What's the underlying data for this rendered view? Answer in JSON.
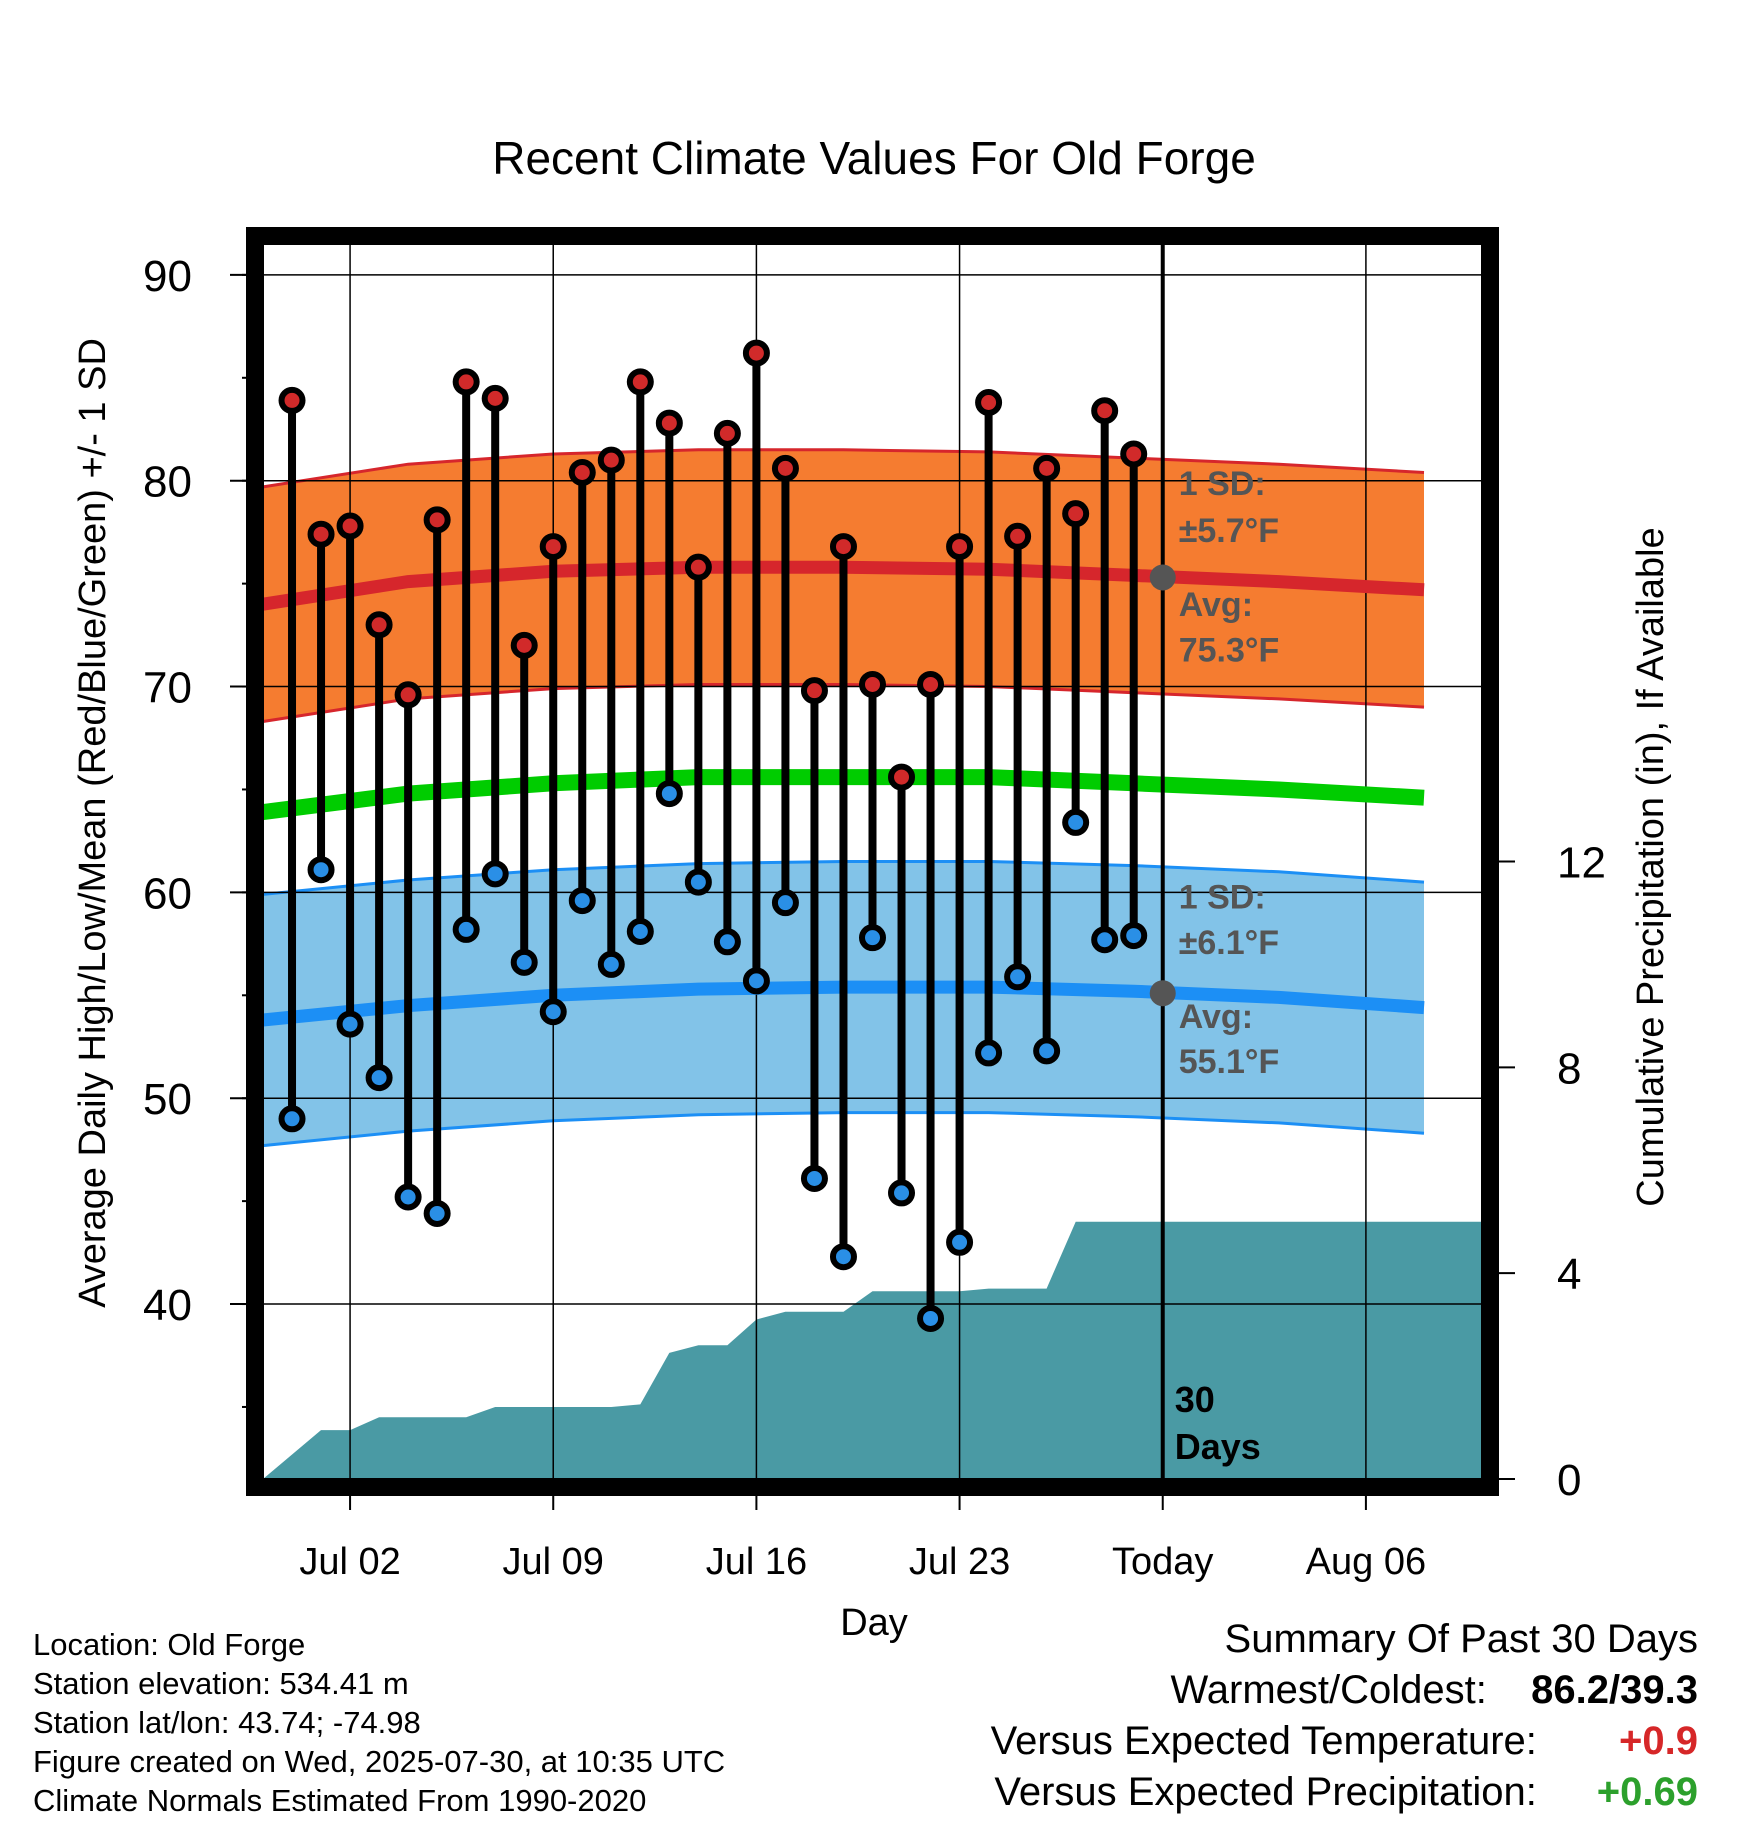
{
  "chart_data": {
    "type": "line",
    "title": "Recent Climate Values For Old Forge",
    "xlabel": "Day",
    "ylabel": "Average Daily High/Low/Mean (Red/Blue/Green) +/- 1 SD",
    "y2label": "Cumulative Precipitation (in), If Available",
    "ylim": [
      31.5,
      91.5
    ],
    "y2lim": [
      0,
      24
    ],
    "yticks": [
      "40",
      "50",
      "60",
      "70",
      "80",
      "90"
    ],
    "y2ticks": [
      "0",
      "4",
      "8",
      "12"
    ],
    "xlim": [
      "2025-06-29",
      "2025-08-10"
    ],
    "xticks": [
      {
        "date": "2025-07-02",
        "label": "Jul 02"
      },
      {
        "date": "2025-07-09",
        "label": "Jul 09"
      },
      {
        "date": "2025-07-16",
        "label": "Jul 16"
      },
      {
        "date": "2025-07-23",
        "label": "Jul 23"
      },
      {
        "date": "2025-07-30",
        "label": "Today"
      },
      {
        "date": "2025-08-06",
        "label": "Aug 06"
      }
    ],
    "grid": true,
    "dates": [
      "2025-07-01",
      "2025-07-02",
      "2025-07-03",
      "2025-07-04",
      "2025-07-05",
      "2025-07-06",
      "2025-07-07",
      "2025-07-08",
      "2025-07-09",
      "2025-07-10",
      "2025-07-11",
      "2025-07-12",
      "2025-07-13",
      "2025-07-14",
      "2025-07-15",
      "2025-07-16",
      "2025-07-17",
      "2025-07-18",
      "2025-07-19",
      "2025-07-20",
      "2025-07-21",
      "2025-07-22",
      "2025-07-23",
      "2025-07-24",
      "2025-07-25",
      "2025-07-26",
      "2025-07-27",
      "2025-07-28",
      "2025-07-29"
    ],
    "highs": [
      83.9,
      77.4,
      77.8,
      73.0,
      69.6,
      78.1,
      84.8,
      84.0,
      72.0,
      76.8,
      80.4,
      81.0,
      84.8,
      82.8,
      75.8,
      82.3,
      86.2,
      80.6,
      69.8,
      76.8,
      70.1,
      65.6,
      70.1,
      76.8,
      83.8,
      77.3,
      80.6,
      78.4,
      83.4,
      81.3
    ],
    "lows": [
      49.0,
      61.1,
      53.6,
      51.0,
      45.2,
      44.4,
      58.2,
      60.9,
      56.6,
      54.2,
      59.6,
      56.5,
      58.1,
      64.8,
      60.5,
      57.6,
      55.7,
      59.5,
      46.1,
      42.3,
      57.8,
      45.4,
      39.3,
      43.0,
      52.2,
      55.9,
      52.3,
      63.4,
      57.7,
      57.9
    ],
    "high_low_dates": [
      "2025-06-30",
      "2025-07-01",
      "2025-07-02",
      "2025-07-03",
      "2025-07-04",
      "2025-07-05",
      "2025-07-06",
      "2025-07-07",
      "2025-07-08",
      "2025-07-09",
      "2025-07-10",
      "2025-07-11",
      "2025-07-12",
      "2025-07-13",
      "2025-07-14",
      "2025-07-15",
      "2025-07-16",
      "2025-07-17",
      "2025-07-18",
      "2025-07-19",
      "2025-07-20",
      "2025-07-21",
      "2025-07-22",
      "2025-07-23",
      "2025-07-24",
      "2025-07-25",
      "2025-07-26",
      "2025-07-27",
      "2025-07-28",
      "2025-07-29"
    ],
    "normals": {
      "dates": [
        "2025-06-29",
        "2025-07-04",
        "2025-07-09",
        "2025-07-14",
        "2025-07-19",
        "2025-07-24",
        "2025-07-29",
        "2025-08-03",
        "2025-08-08"
      ],
      "avg_high": [
        74.0,
        75.1,
        75.6,
        75.8,
        75.8,
        75.7,
        75.4,
        75.1,
        74.7
      ],
      "avg_low": [
        53.8,
        54.5,
        55.0,
        55.3,
        55.4,
        55.4,
        55.2,
        54.9,
        54.4
      ],
      "avg_mean": [
        63.9,
        64.8,
        65.3,
        65.6,
        65.6,
        65.6,
        65.3,
        65.0,
        64.6
      ],
      "high_sd": 5.7,
      "low_sd": 6.1
    },
    "precipitation": {
      "dates": [
        "2025-06-29",
        "2025-07-01",
        "2025-07-02",
        "2025-07-03",
        "2025-07-04",
        "2025-07-05",
        "2025-07-06",
        "2025-07-07",
        "2025-07-08",
        "2025-07-09",
        "2025-07-10",
        "2025-07-11",
        "2025-07-12",
        "2025-07-13",
        "2025-07-14",
        "2025-07-15",
        "2025-07-16",
        "2025-07-17",
        "2025-07-18",
        "2025-07-19",
        "2025-07-20",
        "2025-07-21",
        "2025-07-22",
        "2025-07-23",
        "2025-07-24",
        "2025-07-25",
        "2025-07-26",
        "2025-07-27",
        "2025-07-28",
        "2025-07-29",
        "2025-08-10"
      ],
      "values": [
        0.0,
        0.95,
        0.95,
        1.2,
        1.2,
        1.2,
        1.2,
        1.4,
        1.4,
        1.4,
        1.4,
        1.4,
        1.45,
        2.45,
        2.6,
        2.6,
        3.1,
        3.25,
        3.25,
        3.25,
        3.65,
        3.65,
        3.65,
        3.65,
        3.7,
        3.7,
        3.7,
        5.0,
        5.0,
        5.0,
        5.0
      ]
    },
    "annotations": {
      "high_sd": [
        "1 SD:",
        "±5.7°F"
      ],
      "high_avg": [
        "Avg:",
        "75.3°F"
      ],
      "low_sd": [
        "1 SD:",
        "±6.1°F"
      ],
      "low_avg": [
        "Avg:",
        "55.1°F"
      ],
      "window": [
        "30",
        "Days"
      ]
    },
    "colors": {
      "high_band": "#f57c30",
      "high_line": "#d6262c",
      "low_band": "#82c3e8",
      "low_line": "#1c8ff5",
      "mean_line": "#00cc00",
      "precip": "#4a9aa4",
      "annotation": "#555555",
      "high_marker": "#d12a2a",
      "low_marker": "#2a8fe6"
    }
  },
  "info": {
    "location": "Location: Old Forge",
    "elevation": "Station elevation: 534.41 m",
    "latlon": "Station lat/lon: 43.74; -74.98",
    "created": "Figure created on Wed, 2025-07-30, at 10:35 UTC",
    "normals": "Climate Normals Estimated From 1990-2020"
  },
  "summary": {
    "title": "Summary Of Past 30 Days",
    "warm_cold_label": "Warmest/Coldest:",
    "warm_cold_value": "86.2/39.3",
    "temp_label": "Versus Expected Temperature:",
    "temp_value": "+0.9",
    "temp_color": "#d62728",
    "precip_label": "Versus Expected Precipitation:",
    "precip_value": "+0.69",
    "precip_color": "#2ca02c"
  }
}
